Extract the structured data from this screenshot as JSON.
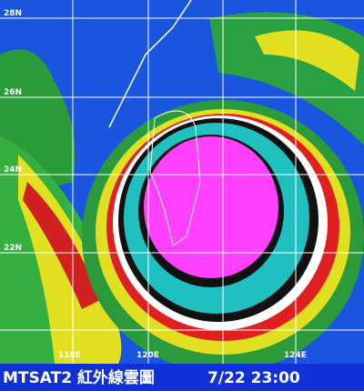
{
  "map": {
    "lat_labels": [
      "28N",
      "26N",
      "24N",
      "22N"
    ],
    "lon_labels": [
      "118E",
      "120E",
      "124E"
    ]
  },
  "caption": {
    "source": "MTSAT2 紅外線雲圖",
    "time": "7/22 23:00"
  }
}
